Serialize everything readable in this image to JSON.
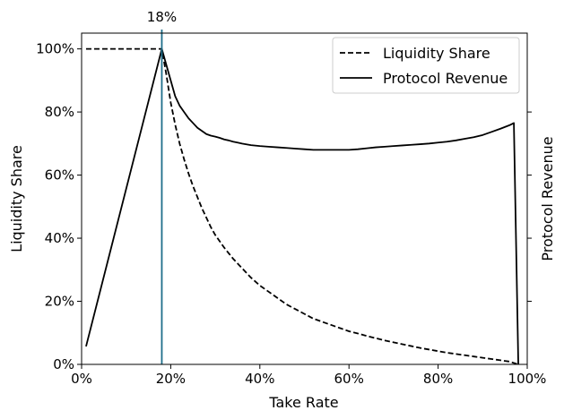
{
  "chart_data": {
    "type": "line",
    "xlabel": "Take Rate",
    "ylabel": "Liquidity Share",
    "y2label": "Protocol Revenue",
    "xlim": [
      0,
      100
    ],
    "ylim": [
      0,
      105
    ],
    "y2lim": [
      0,
      1.05
    ],
    "xticks": [
      0,
      20,
      40,
      60,
      80,
      100
    ],
    "xtick_labels": [
      "0%",
      "20%",
      "40%",
      "60%",
      "80%",
      "100%"
    ],
    "yticks": [
      0,
      20,
      40,
      60,
      80,
      100
    ],
    "ytick_labels": [
      "0%",
      "20%",
      "40%",
      "60%",
      "80%",
      "100%"
    ],
    "y2ticks": [
      0.2,
      0.4,
      0.6,
      0.8
    ],
    "grid": false,
    "legend_position": "top-right",
    "annotation": {
      "x": 18,
      "label": "18%",
      "color": "#1f6f8b"
    },
    "series": [
      {
        "name": "Liquidity Share",
        "axis": "left",
        "style": "dashed",
        "color": "#000000",
        "x": [
          1,
          18,
          19,
          20,
          21,
          22,
          23,
          24,
          25,
          26,
          27,
          28,
          29,
          30,
          32,
          34,
          36,
          38,
          40,
          42,
          44,
          46,
          48,
          50,
          52,
          54,
          56,
          58,
          60,
          62,
          64,
          66,
          68,
          70,
          72,
          74,
          76,
          78,
          80,
          82,
          84,
          86,
          88,
          90,
          92,
          94,
          96,
          98
        ],
        "y": [
          100,
          100,
          92,
          83,
          76,
          70,
          65,
          60.5,
          56.5,
          53,
          49.5,
          46.5,
          43.5,
          41,
          37,
          33.5,
          30.5,
          27.5,
          25,
          23,
          21,
          19,
          17.5,
          16,
          14.5,
          13.5,
          12.5,
          11.5,
          10.5,
          9.8,
          9,
          8.3,
          7.6,
          7,
          6.4,
          5.8,
          5.2,
          4.7,
          4.2,
          3.7,
          3.3,
          2.9,
          2.5,
          2.1,
          1.7,
          1.3,
          0.9,
          0
        ]
      },
      {
        "name": "Protocol Revenue",
        "axis": "right",
        "style": "solid",
        "color": "#000000",
        "x": [
          1,
          18,
          19,
          20,
          21,
          22,
          23,
          24,
          25,
          26,
          27,
          28,
          29,
          30,
          31,
          32,
          33,
          34,
          35,
          36,
          38,
          40,
          42,
          44,
          46,
          48,
          50,
          52,
          54,
          56,
          58,
          60,
          62,
          64,
          66,
          68,
          70,
          72,
          74,
          76,
          78,
          80,
          82,
          84,
          86,
          88,
          90,
          92,
          94,
          96,
          97,
          98
        ],
        "y": [
          0.057,
          1.0,
          0.95,
          0.9,
          0.85,
          0.82,
          0.8,
          0.78,
          0.765,
          0.75,
          0.74,
          0.73,
          0.725,
          0.722,
          0.718,
          0.713,
          0.71,
          0.706,
          0.703,
          0.7,
          0.695,
          0.692,
          0.69,
          0.688,
          0.686,
          0.684,
          0.682,
          0.68,
          0.68,
          0.68,
          0.68,
          0.68,
          0.682,
          0.685,
          0.688,
          0.69,
          0.692,
          0.694,
          0.696,
          0.698,
          0.7,
          0.703,
          0.706,
          0.71,
          0.715,
          0.72,
          0.727,
          0.737,
          0.747,
          0.758,
          0.765,
          0.0
        ]
      }
    ]
  }
}
